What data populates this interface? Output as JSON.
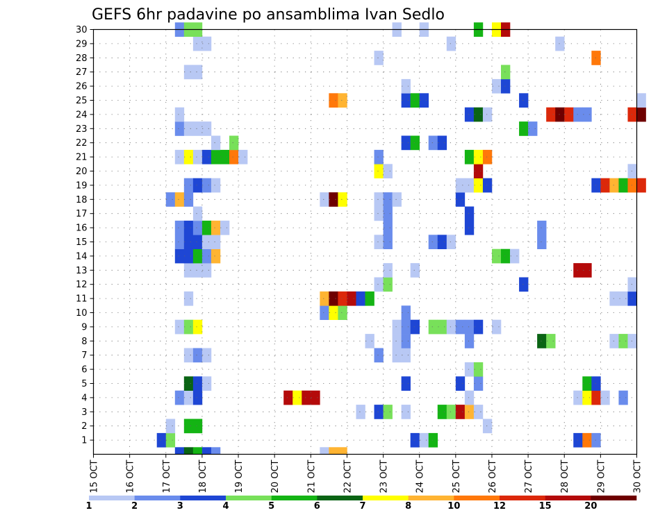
{
  "chart_data": {
    "type": "heatmap",
    "title": "GEFS 6hr padavine po ansamblima Ivan Sedlo",
    "x_tick_labels": [
      "15 OCT",
      "16 OCT",
      "17 OCT",
      "18 OCT",
      "19 OCT",
      "20 OCT",
      "21 OCT",
      "22 OCT",
      "23 OCT",
      "24 OCT",
      "25 OCT",
      "26 OCT",
      "27 OCT",
      "28 OCT",
      "29 OCT",
      "30 OCT"
    ],
    "y_tick_labels": [
      "1",
      "2",
      "3",
      "4",
      "5",
      "6",
      "7",
      "8",
      "9",
      "10",
      "11",
      "12",
      "13",
      "14",
      "15",
      "16",
      "17",
      "18",
      "19",
      "20",
      "21",
      "22",
      "23",
      "24",
      "25",
      "26",
      "27",
      "28",
      "29",
      "30"
    ],
    "x_range": [
      "15 OCT",
      "30 OCT"
    ],
    "y_range": [
      0,
      30
    ],
    "grid": true,
    "colorbar": {
      "colors": [
        "#b8c8f4",
        "#6a8cec",
        "#1e46d4",
        "#78e05a",
        "#14b414",
        "#0a6414",
        "#ffff00",
        "#ffb432",
        "#ff780a",
        "#dc280a",
        "#b40a0a",
        "#6e0000"
      ],
      "labels": [
        "1",
        "2",
        "3",
        "4",
        "5",
        "6",
        "7",
        "8",
        "10",
        "12",
        "15",
        "20"
      ]
    },
    "cells": [
      [
        0,
        2.25,
        3
      ],
      [
        0,
        2.5,
        6
      ],
      [
        0,
        2.75,
        5
      ],
      [
        0,
        3,
        3
      ],
      [
        0,
        3.25,
        2
      ],
      [
        0,
        6.25,
        1
      ],
      [
        0,
        6.5,
        8
      ],
      [
        0,
        6.75,
        8
      ],
      [
        1,
        1.75,
        3
      ],
      [
        1,
        2,
        4
      ],
      [
        1,
        8.75,
        3
      ],
      [
        1,
        9,
        1
      ],
      [
        1,
        9.25,
        5
      ],
      [
        1,
        13.25,
        3
      ],
      [
        1,
        13.5,
        9
      ],
      [
        1,
        13.75,
        2
      ],
      [
        2,
        2,
        1
      ],
      [
        2,
        2.5,
        5
      ],
      [
        2,
        2.75,
        5
      ],
      [
        2,
        10.75,
        1
      ],
      [
        3,
        7.25,
        1
      ],
      [
        3,
        7.75,
        3
      ],
      [
        3,
        8,
        4
      ],
      [
        3,
        8.5,
        1
      ],
      [
        3,
        9.5,
        5
      ],
      [
        3,
        9.75,
        4
      ],
      [
        3,
        10,
        11
      ],
      [
        3,
        10.25,
        8
      ],
      [
        3,
        10.5,
        1
      ],
      [
        4,
        2.25,
        2
      ],
      [
        4,
        2.5,
        1
      ],
      [
        4,
        2.75,
        3
      ],
      [
        4,
        5.25,
        11
      ],
      [
        4,
        5.5,
        7
      ],
      [
        4,
        5.75,
        11
      ],
      [
        4,
        6,
        11
      ],
      [
        4,
        10.25,
        1
      ],
      [
        4,
        13.25,
        1
      ],
      [
        4,
        13.5,
        7
      ],
      [
        4,
        13.75,
        10
      ],
      [
        4,
        14,
        1
      ],
      [
        4,
        14.5,
        2
      ],
      [
        5,
        2.5,
        6
      ],
      [
        5,
        2.75,
        3
      ],
      [
        5,
        3,
        1
      ],
      [
        5,
        8.5,
        3
      ],
      [
        5,
        10,
        3
      ],
      [
        5,
        10.5,
        2
      ],
      [
        5,
        13.5,
        5
      ],
      [
        5,
        13.75,
        3
      ],
      [
        6,
        10.25,
        1
      ],
      [
        6,
        10.5,
        4
      ],
      [
        7,
        2.5,
        1
      ],
      [
        7,
        2.75,
        2
      ],
      [
        7,
        3,
        1
      ],
      [
        7,
        7.75,
        2
      ],
      [
        7,
        8.25,
        1
      ],
      [
        7,
        8.5,
        1
      ],
      [
        8,
        7.5,
        1
      ],
      [
        8,
        8.25,
        1
      ],
      [
        8,
        8.5,
        2
      ],
      [
        8,
        10.25,
        2
      ],
      [
        8,
        12.25,
        6
      ],
      [
        8,
        12.5,
        4
      ],
      [
        8,
        14.25,
        1
      ],
      [
        8,
        14.5,
        4
      ],
      [
        8,
        14.75,
        1
      ],
      [
        9,
        2.25,
        1
      ],
      [
        9,
        2.5,
        4
      ],
      [
        9,
        2.75,
        7
      ],
      [
        9,
        8.25,
        1
      ],
      [
        9,
        8.5,
        2
      ],
      [
        9,
        8.75,
        3
      ],
      [
        9,
        9.25,
        4
      ],
      [
        9,
        9.5,
        4
      ],
      [
        9,
        9.75,
        1
      ],
      [
        9,
        10,
        2
      ],
      [
        9,
        10.25,
        2
      ],
      [
        9,
        10.5,
        3
      ],
      [
        9,
        11,
        1
      ],
      [
        10,
        6.25,
        2
      ],
      [
        10,
        6.5,
        7
      ],
      [
        10,
        6.75,
        4
      ],
      [
        10,
        8.5,
        2
      ],
      [
        11,
        2.5,
        1
      ],
      [
        11,
        6.25,
        8
      ],
      [
        11,
        6.5,
        12
      ],
      [
        11,
        6.75,
        10
      ],
      [
        11,
        7,
        11
      ],
      [
        11,
        7.25,
        3
      ],
      [
        11,
        7.5,
        5
      ],
      [
        11,
        14.25,
        1
      ],
      [
        11,
        14.5,
        1
      ],
      [
        11,
        14.75,
        3
      ],
      [
        12,
        7.75,
        1
      ],
      [
        12,
        8,
        4
      ],
      [
        12,
        11.75,
        3
      ],
      [
        12,
        14.75,
        1
      ],
      [
        13,
        2.5,
        1
      ],
      [
        13,
        2.75,
        1
      ],
      [
        13,
        3,
        1
      ],
      [
        13,
        8,
        1
      ],
      [
        13,
        8.75,
        1
      ],
      [
        13,
        13.25,
        11
      ],
      [
        13,
        13.5,
        11
      ],
      [
        14,
        2.25,
        3
      ],
      [
        14,
        2.5,
        3
      ],
      [
        14,
        2.75,
        5
      ],
      [
        14,
        3,
        2
      ],
      [
        14,
        3.25,
        8
      ],
      [
        14,
        11,
        4
      ],
      [
        14,
        11.25,
        5
      ],
      [
        14,
        11.5,
        1
      ],
      [
        15,
        2.25,
        2
      ],
      [
        15,
        2.5,
        3
      ],
      [
        15,
        2.75,
        3
      ],
      [
        15,
        3,
        1
      ],
      [
        15,
        3.25,
        1
      ],
      [
        15,
        7.75,
        1
      ],
      [
        15,
        8,
        2
      ],
      [
        15,
        9.25,
        2
      ],
      [
        15,
        9.5,
        3
      ],
      [
        15,
        9.75,
        1
      ],
      [
        15,
        12.25,
        2
      ],
      [
        16,
        2.25,
        2
      ],
      [
        16,
        2.5,
        3
      ],
      [
        16,
        2.75,
        2
      ],
      [
        16,
        3,
        5
      ],
      [
        16,
        3.25,
        8
      ],
      [
        16,
        3.5,
        1
      ],
      [
        16,
        8,
        2
      ],
      [
        16,
        10.25,
        3
      ],
      [
        16,
        12.25,
        2
      ],
      [
        17,
        2.75,
        1
      ],
      [
        17,
        7.75,
        1
      ],
      [
        17,
        8,
        2
      ],
      [
        17,
        10.25,
        3
      ],
      [
        18,
        2,
        2
      ],
      [
        18,
        2.25,
        8
      ],
      [
        18,
        2.5,
        2
      ],
      [
        18,
        6.25,
        1
      ],
      [
        18,
        6.5,
        12
      ],
      [
        18,
        6.75,
        7
      ],
      [
        18,
        7.75,
        1
      ],
      [
        18,
        8,
        2
      ],
      [
        18,
        8.25,
        1
      ],
      [
        18,
        10,
        3
      ],
      [
        19,
        2.5,
        2
      ],
      [
        19,
        2.75,
        3
      ],
      [
        19,
        3,
        2
      ],
      [
        19,
        3.25,
        1
      ],
      [
        19,
        10,
        1
      ],
      [
        19,
        10.25,
        1
      ],
      [
        19,
        10.5,
        7
      ],
      [
        19,
        10.75,
        3
      ],
      [
        19,
        13.75,
        3
      ],
      [
        19,
        14,
        10
      ],
      [
        19,
        14.25,
        8
      ],
      [
        19,
        14.5,
        5
      ],
      [
        19,
        14.75,
        9
      ],
      [
        19,
        15,
        10
      ],
      [
        20,
        7.75,
        7
      ],
      [
        20,
        8,
        1
      ],
      [
        20,
        10.5,
        11
      ],
      [
        20,
        14.75,
        1
      ],
      [
        21,
        2.25,
        1
      ],
      [
        21,
        2.5,
        7
      ],
      [
        21,
        2.75,
        1
      ],
      [
        21,
        3,
        3
      ],
      [
        21,
        3.25,
        5
      ],
      [
        21,
        3.5,
        5
      ],
      [
        21,
        3.75,
        9
      ],
      [
        21,
        4,
        1
      ],
      [
        21,
        7.75,
        2
      ],
      [
        21,
        10.25,
        5
      ],
      [
        21,
        10.5,
        7
      ],
      [
        21,
        10.75,
        9
      ],
      [
        22,
        3.25,
        1
      ],
      [
        22,
        3.75,
        4
      ],
      [
        22,
        8.5,
        3
      ],
      [
        22,
        8.75,
        5
      ],
      [
        22,
        9.25,
        2
      ],
      [
        22,
        9.5,
        3
      ],
      [
        23,
        2.25,
        2
      ],
      [
        23,
        2.5,
        1
      ],
      [
        23,
        2.75,
        1
      ],
      [
        23,
        3,
        1
      ],
      [
        23,
        11.75,
        5
      ],
      [
        23,
        12,
        2
      ],
      [
        24,
        2.25,
        1
      ],
      [
        24,
        10.25,
        3
      ],
      [
        24,
        10.5,
        6
      ],
      [
        24,
        10.75,
        1
      ],
      [
        24,
        12.5,
        10
      ],
      [
        24,
        12.75,
        12
      ],
      [
        24,
        13,
        10
      ],
      [
        24,
        13.25,
        2
      ],
      [
        24,
        13.5,
        2
      ],
      [
        24,
        14.75,
        10
      ],
      [
        24,
        15,
        12
      ],
      [
        25,
        6.5,
        9
      ],
      [
        25,
        6.75,
        8
      ],
      [
        25,
        8.5,
        3
      ],
      [
        25,
        8.75,
        5
      ],
      [
        25,
        9,
        3
      ],
      [
        25,
        11.75,
        3
      ],
      [
        25,
        15,
        1
      ],
      [
        26,
        8.5,
        1
      ],
      [
        26,
        11,
        1
      ],
      [
        26,
        11.25,
        3
      ],
      [
        27,
        2.5,
        1
      ],
      [
        27,
        2.75,
        1
      ],
      [
        27,
        11.25,
        4
      ],
      [
        28,
        7.75,
        1
      ],
      [
        28,
        13.75,
        9
      ],
      [
        29,
        2.75,
        1
      ],
      [
        29,
        3,
        1
      ],
      [
        29,
        9.75,
        1
      ],
      [
        29,
        12.75,
        1
      ],
      [
        30,
        2.25,
        2
      ],
      [
        30,
        2.5,
        4
      ],
      [
        30,
        2.75,
        4
      ],
      [
        30,
        8.25,
        1
      ],
      [
        30,
        9,
        1
      ],
      [
        30,
        10.5,
        5
      ],
      [
        30,
        11,
        7
      ],
      [
        30,
        11.25,
        11
      ]
    ]
  }
}
